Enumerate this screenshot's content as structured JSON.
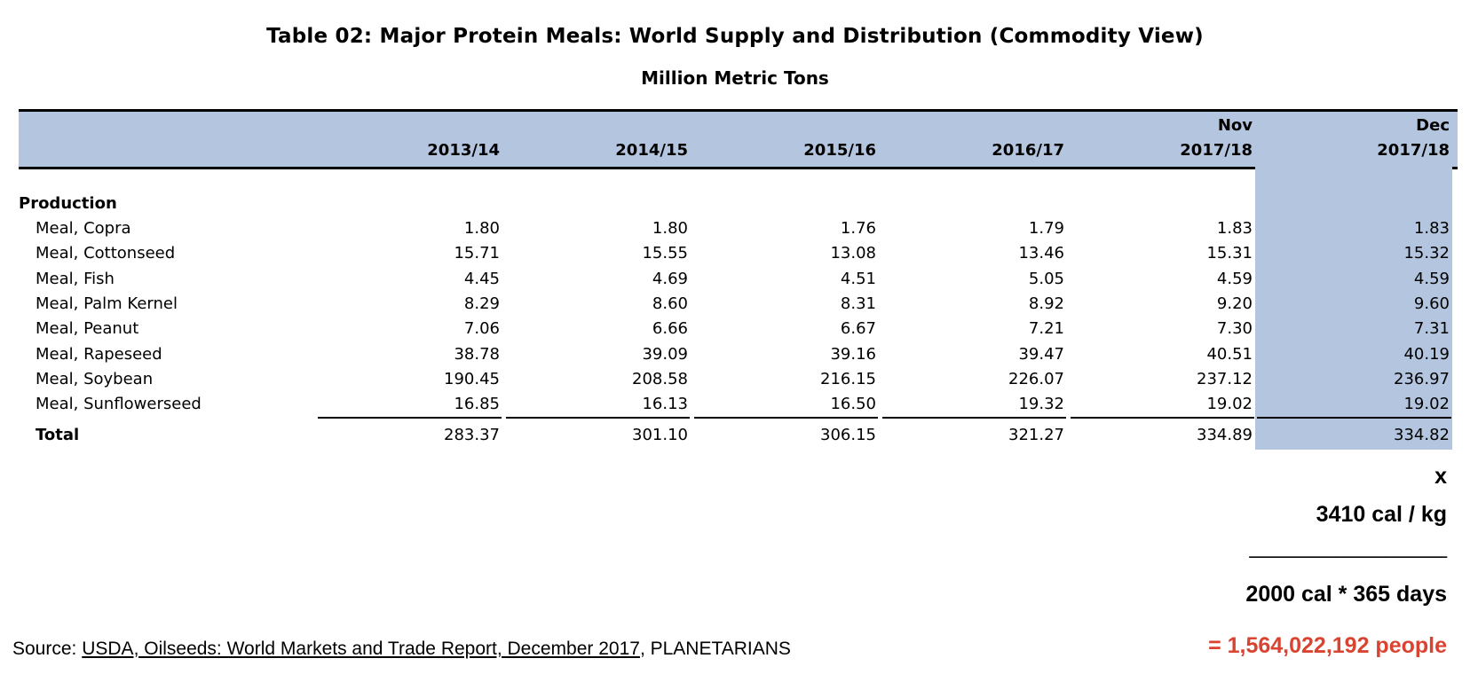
{
  "title": "Table 02: Major Protein Meals: World Supply and Distribution (Commodity View)",
  "subtitle": "Million Metric Tons",
  "header": {
    "columns": [
      {
        "top": "",
        "bottom": "2013/14"
      },
      {
        "top": "",
        "bottom": "2014/15"
      },
      {
        "top": "",
        "bottom": "2015/16"
      },
      {
        "top": "",
        "bottom": "2016/17"
      },
      {
        "top": "Nov",
        "bottom": "2017/18"
      },
      {
        "top": "Dec",
        "bottom": "2017/18"
      }
    ]
  },
  "section_label": "Production",
  "rows": [
    {
      "label": "Meal, Copra",
      "values": [
        "1.80",
        "1.80",
        "1.76",
        "1.79",
        "1.83",
        "1.83"
      ]
    },
    {
      "label": "Meal, Cottonseed",
      "values": [
        "15.71",
        "15.55",
        "13.08",
        "13.46",
        "15.31",
        "15.32"
      ]
    },
    {
      "label": "Meal, Fish",
      "values": [
        "4.45",
        "4.69",
        "4.51",
        "5.05",
        "4.59",
        "4.59"
      ]
    },
    {
      "label": "Meal, Palm Kernel",
      "values": [
        "8.29",
        "8.60",
        "8.31",
        "8.92",
        "9.20",
        "9.60"
      ]
    },
    {
      "label": "Meal, Peanut",
      "values": [
        "7.06",
        "6.66",
        "6.67",
        "7.21",
        "7.30",
        "7.31"
      ]
    },
    {
      "label": "Meal, Rapeseed",
      "values": [
        "38.78",
        "39.09",
        "39.16",
        "39.47",
        "40.51",
        "40.19"
      ]
    },
    {
      "label": "Meal, Soybean",
      "values": [
        "190.45",
        "208.58",
        "216.15",
        "226.07",
        "237.12",
        "236.97"
      ]
    },
    {
      "label": "Meal, Sunflowerseed",
      "values": [
        "16.85",
        "16.13",
        "16.50",
        "19.32",
        "19.02",
        "19.02"
      ]
    }
  ],
  "total": {
    "label": "Total",
    "values": [
      "283.37",
      "301.10",
      "306.15",
      "321.27",
      "334.89",
      "334.82"
    ]
  },
  "calculation": {
    "multiply": "x",
    "calories_per_kg": "3410 cal / kg",
    "divider": "________________",
    "divisor": "2000 cal * 365 days",
    "result": "= 1,564,022,192 people"
  },
  "source": {
    "prefix": "Source: ",
    "link_text": "USDA, Oilseeds: World Markets and Trade Report, December 2017",
    "suffix": ", PLANETARIANS"
  },
  "colors": {
    "header_band": "#b4c6df",
    "result": "#d94432"
  }
}
